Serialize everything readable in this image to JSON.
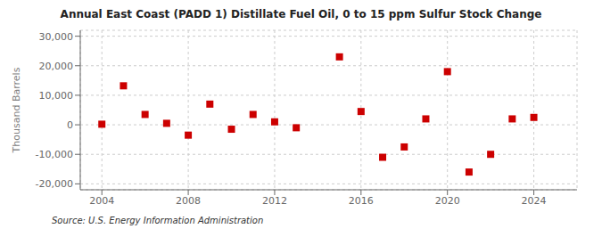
{
  "chart_data": {
    "type": "scatter",
    "title": "Annual East Coast (PADD 1) Distillate Fuel Oil, 0 to 15 ppm Sulfur Stock Change",
    "y_label": "Thousand Barrels",
    "annotations": [
      "Source: U.S. Energy Information Administration"
    ],
    "x": [
      2004,
      2005,
      2006,
      2007,
      2008,
      2009,
      2010,
      2011,
      2012,
      2013,
      2015,
      2016,
      2017,
      2018,
      2019,
      2020,
      2021,
      2022,
      2023,
      2024
    ],
    "values": [
      200,
      13200,
      3500,
      500,
      -3500,
      7000,
      -1500,
      3500,
      1000,
      -1000,
      23000,
      4500,
      -11000,
      -7500,
      2000,
      18000,
      -16000,
      -10000,
      2000,
      2500
    ],
    "color": "#cc0000",
    "marker": "square",
    "xlim": [
      2003,
      2026
    ],
    "xticks": [
      2004,
      2008,
      2012,
      2016,
      2020,
      2024
    ],
    "ylim": [
      -22000,
      32000
    ],
    "yticks": [
      {
        "value": -20000,
        "label": "-20,000"
      },
      {
        "value": -10000,
        "label": "-10,000"
      },
      0,
      {
        "value": 10000,
        "label": "10,000"
      },
      {
        "value": 20000,
        "label": "20,000"
      },
      {
        "value": 30000,
        "label": "30,000"
      }
    ],
    "grid": true
  }
}
